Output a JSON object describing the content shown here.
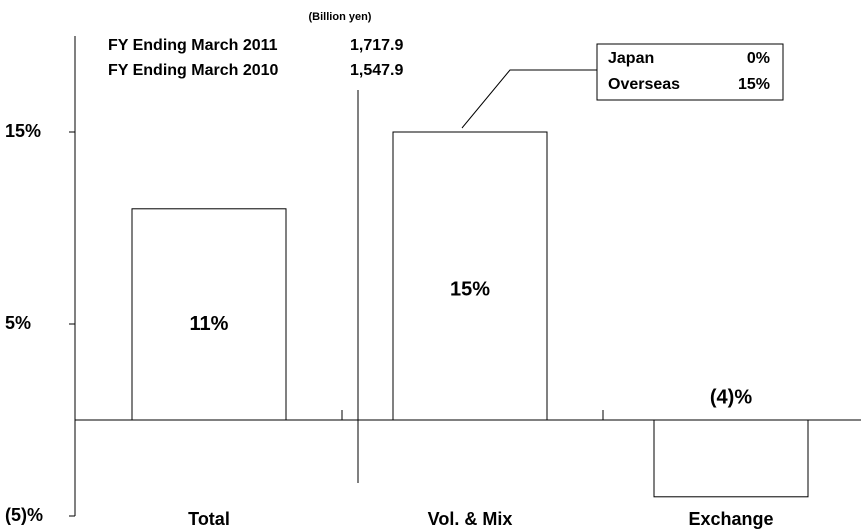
{
  "chart_data": {
    "type": "bar",
    "categories": [
      "Total",
      "Vol. & Mix",
      "Exchange"
    ],
    "values": [
      11,
      15,
      -4
    ],
    "value_labels": [
      "11%",
      "15%",
      "(4)%"
    ],
    "color": "#ffffff",
    "ylim": [
      -5,
      20
    ],
    "yticks": [
      {
        "value": 15,
        "label": "15%"
      },
      {
        "value": 5,
        "label": "5%"
      },
      {
        "value": -5,
        "label": "(5)%"
      }
    ],
    "annotations": {
      "unit": "(Billion yen)",
      "rows": [
        [
          "FY Ending March 2011",
          "1,717.9"
        ],
        [
          "FY Ending March 2010",
          "1,547.9"
        ]
      ],
      "box": [
        [
          "Japan",
          "0%"
        ],
        [
          "Overseas",
          "15%"
        ]
      ]
    }
  }
}
